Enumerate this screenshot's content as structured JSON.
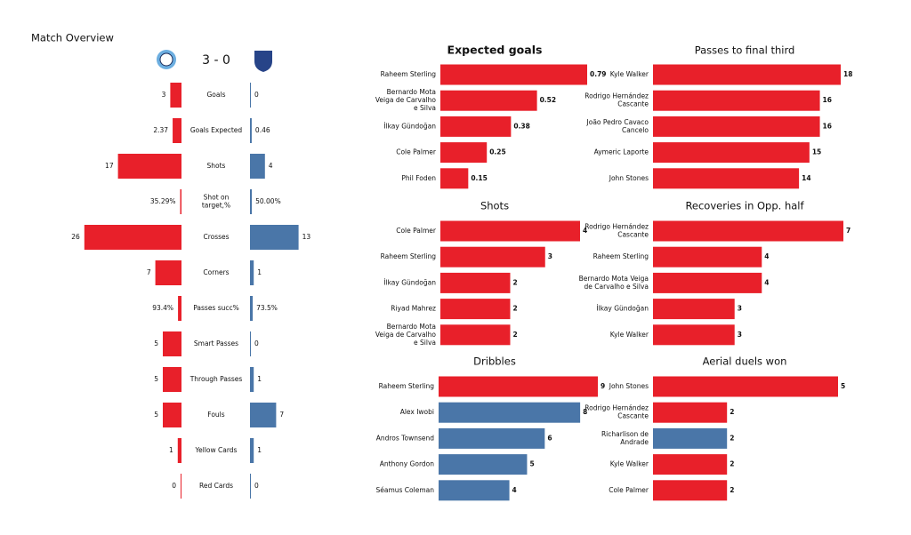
{
  "chart_data": [
    {
      "type": "butterfly",
      "title": "Match Overview",
      "score": "3 - 0",
      "categories": [
        "Goals",
        "Goals Expected",
        "Shots",
        "Shot on\ntarget,%",
        "Crosses",
        "Corners",
        "Passes succ%",
        "Smart Passes",
        "Through Passes",
        "Fouls",
        "Yellow Cards",
        "Red Cards"
      ],
      "series": [
        {
          "color": "#e8202a",
          "values": [
            3,
            2.37,
            17,
            0.3529,
            26,
            7,
            0.934,
            5,
            5,
            5,
            1,
            0
          ],
          "value_labels": [
            "3",
            "2.37",
            "17",
            "35.29%",
            "26",
            "7",
            "93.4%",
            "5",
            "5",
            "5",
            "1",
            "0"
          ]
        },
        {
          "color": "#4a76a8",
          "values": [
            0,
            0.46,
            4,
            0.5,
            13,
            1,
            0.735,
            0,
            1,
            7,
            1,
            0
          ],
          "value_labels": [
            "0",
            "0.46",
            "4",
            "50.00%",
            "13",
            "1",
            "73.5%",
            "0",
            "1",
            "7",
            "1",
            "0"
          ]
        }
      ]
    },
    {
      "type": "hbar",
      "title": "Expected goals",
      "bold_title": true,
      "categories": [
        "Raheem Sterling",
        "Bernardo Mota\nVeiga de Carvalho\ne Silva",
        "İlkay Gündoğan",
        "Cole Palmer",
        "Phil Foden"
      ],
      "values": [
        0.79,
        0.52,
        0.38,
        0.25,
        0.15
      ],
      "colors": [
        "#e8202a",
        "#e8202a",
        "#e8202a",
        "#e8202a",
        "#e8202a"
      ]
    },
    {
      "type": "hbar",
      "title": "Passes to final third",
      "categories": [
        "Kyle Walker",
        "Rodrigo Hernández\nCascante",
        "João Pedro Cavaco\nCancelo",
        "Aymeric  Laporte",
        "John Stones"
      ],
      "values": [
        18,
        16,
        16,
        15,
        14
      ],
      "colors": [
        "#e8202a",
        "#e8202a",
        "#e8202a",
        "#e8202a",
        "#e8202a"
      ]
    },
    {
      "type": "hbar",
      "title": "Shots",
      "categories": [
        "Cole Palmer",
        "Raheem Sterling",
        "İlkay Gündoğan",
        "Riyad Mahrez",
        "Bernardo Mota\nVeiga de Carvalho\ne Silva"
      ],
      "values": [
        4,
        3,
        2,
        2,
        2
      ],
      "colors": [
        "#e8202a",
        "#e8202a",
        "#e8202a",
        "#e8202a",
        "#e8202a"
      ]
    },
    {
      "type": "hbar",
      "title": "Recoveries in Opp. half",
      "categories": [
        "Rodrigo Hernández\nCascante",
        "Raheem Sterling",
        "Bernardo Mota Veiga\nde Carvalho e Silva",
        "İlkay Gündoğan",
        "Kyle Walker"
      ],
      "values": [
        7,
        4,
        4,
        3,
        3
      ],
      "colors": [
        "#e8202a",
        "#e8202a",
        "#e8202a",
        "#e8202a",
        "#e8202a"
      ]
    },
    {
      "type": "hbar",
      "title": "Dribbles",
      "categories": [
        "Raheem Sterling",
        "Alex Iwobi",
        "Andros Townsend",
        "Anthony Gordon",
        "Séamus Coleman"
      ],
      "values": [
        9,
        8,
        6,
        5,
        4
      ],
      "colors": [
        "#e8202a",
        "#4a76a8",
        "#4a76a8",
        "#4a76a8",
        "#4a76a8"
      ]
    },
    {
      "type": "hbar",
      "title": "Aerial duels won",
      "categories": [
        "John Stones",
        "Rodrigo Hernández\nCascante",
        "Richarlison de\nAndrade",
        "Kyle Walker",
        "Cole Palmer"
      ],
      "values": [
        5,
        2,
        2,
        2,
        2
      ],
      "colors": [
        "#e8202a",
        "#e8202a",
        "#4a76a8",
        "#e8202a",
        "#e8202a"
      ]
    }
  ]
}
